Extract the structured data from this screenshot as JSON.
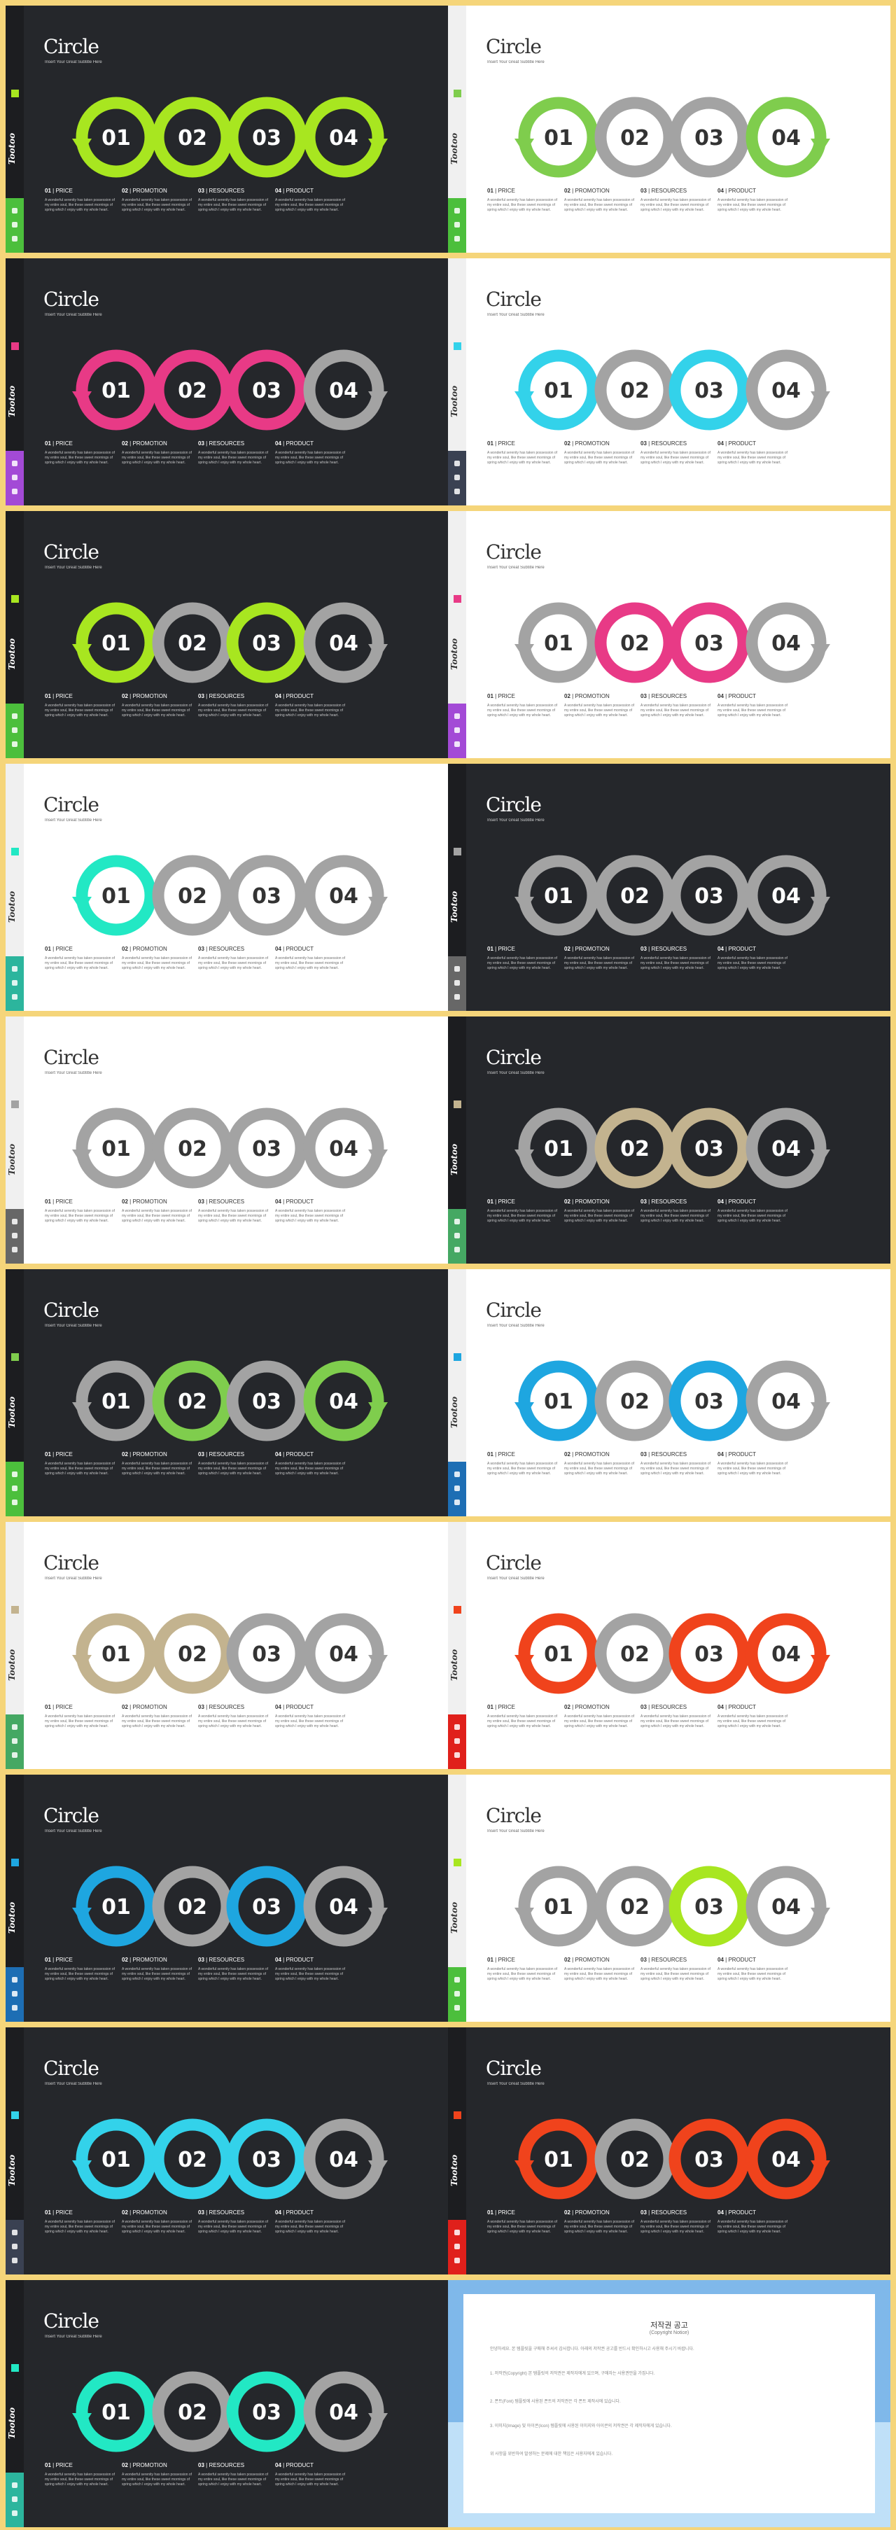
{
  "common": {
    "title": "Circle",
    "subtitle": "Insert Your Great Subtitle Here",
    "logo": "Tootoo",
    "numbers": [
      "01",
      "02",
      "03",
      "04"
    ],
    "captions": [
      {
        "num": "01",
        "label": "PRICE"
      },
      {
        "num": "02",
        "label": "PROMOTION"
      },
      {
        "num": "03",
        "label": "RESOURCES"
      },
      {
        "num": "04",
        "label": "PRODUCT"
      }
    ],
    "caption_text": "A wonderful serenity has taken possession of my entire soul, like these sweet mornings of spring which I enjoy with my whole heart."
  },
  "colors": {
    "gray_ring": "#a3a3a3",
    "dark_bg": "#25272b",
    "light_bg": "#ffffff"
  },
  "slides": [
    {
      "theme": "dark",
      "accent": "#a8e620",
      "ring_colors": [
        "accent",
        "accent",
        "accent",
        "accent"
      ],
      "sidebar": "#4cbf3c"
    },
    {
      "theme": "light",
      "accent": "#7fcd4d",
      "ring_colors": [
        "accent",
        "gray",
        "gray",
        "accent"
      ],
      "sidebar": "#4cbf3c"
    },
    {
      "theme": "dark",
      "accent": "#e83a86",
      "ring_colors": [
        "accent",
        "accent",
        "accent",
        "gray"
      ],
      "sidebar": "#a34ad6"
    },
    {
      "theme": "light",
      "accent": "#33d2ea",
      "ring_colors": [
        "accent",
        "gray",
        "accent",
        "gray"
      ],
      "sidebar": "#3a4152"
    },
    {
      "theme": "dark",
      "accent": "#a8e620",
      "ring_colors": [
        "accent",
        "gray",
        "accent",
        "gray"
      ],
      "sidebar": "#4cbf3c"
    },
    {
      "theme": "light",
      "accent": "#e83a86",
      "ring_colors": [
        "gray",
        "accent",
        "accent",
        "gray"
      ],
      "sidebar": "#a34ad6"
    },
    {
      "theme": "light",
      "accent": "#22e8c4",
      "ring_colors": [
        "accent",
        "gray",
        "gray",
        "gray"
      ],
      "sidebar": "#2cb59d"
    },
    {
      "theme": "dark",
      "accent": "#a3a3a3",
      "ring_colors": [
        "gray",
        "gray",
        "gray",
        "gray"
      ],
      "sidebar": "#676767"
    },
    {
      "theme": "light",
      "accent": "#a3a3a3",
      "ring_colors": [
        "gray",
        "gray",
        "gray",
        "gray"
      ],
      "sidebar": "#676767"
    },
    {
      "theme": "dark",
      "accent": "#c3b38f",
      "ring_colors": [
        "gray",
        "accent",
        "accent",
        "gray"
      ],
      "sidebar": "#45a863"
    },
    {
      "theme": "dark",
      "accent": "#7fcd4d",
      "ring_colors": [
        "gray",
        "accent",
        "gray",
        "accent"
      ],
      "sidebar": "#4cbf3c"
    },
    {
      "theme": "light",
      "accent": "#1ea6e0",
      "ring_colors": [
        "accent",
        "gray",
        "accent",
        "gray"
      ],
      "sidebar": "#1d6eb4"
    },
    {
      "theme": "light",
      "accent": "#c3b38f",
      "ring_colors": [
        "accent",
        "accent",
        "gray",
        "gray"
      ],
      "sidebar": "#45a863"
    },
    {
      "theme": "light",
      "accent": "#f0431c",
      "ring_colors": [
        "accent",
        "gray",
        "accent",
        "accent"
      ],
      "sidebar": "#e0201b"
    },
    {
      "theme": "dark",
      "accent": "#1ea6e0",
      "ring_colors": [
        "accent",
        "gray",
        "accent",
        "gray"
      ],
      "sidebar": "#1d6eb4"
    },
    {
      "theme": "light",
      "accent": "#a8e620",
      "ring_colors": [
        "gray",
        "gray",
        "accent",
        "gray"
      ],
      "sidebar": "#4cbf3c"
    },
    {
      "theme": "dark",
      "accent": "#33d2ea",
      "ring_colors": [
        "accent",
        "accent",
        "accent",
        "gray"
      ],
      "sidebar": "#3a4152"
    },
    {
      "theme": "dark",
      "accent": "#f0431c",
      "ring_colors": [
        "accent",
        "gray",
        "accent",
        "accent"
      ],
      "sidebar": "#e0201b"
    },
    {
      "theme": "dark",
      "accent": "#22e8c4",
      "ring_colors": [
        "accent",
        "gray",
        "accent",
        "gray"
      ],
      "sidebar": "#2cb59d"
    }
  ],
  "notice": {
    "title": "저작권 공고",
    "subtitle": "(Copyright Notice)",
    "paragraphs": [
      "안녕하세요. 본 템플릿을 구매해 주셔서 감사합니다. 아래의 저작권 공고를 반드시 확인하시고 사용해 주시기 바랍니다.",
      "1. 저작권(Copyright) 본 템플릿의 저작권은 제작자에게 있으며, 구매자는 사용권만을 가집니다.",
      "2. 폰트(Font) 템플릿에 사용된 폰트의 저작권은 각 폰트 제작사에 있습니다.",
      "3. 이미지(Image) 및 아이콘(Icon) 템플릿에 사용된 이미지와 아이콘의 저작권은 각 제작자에게 있습니다.",
      "위 사항을 위반하여 발생하는 문제에 대한 책임은 사용자에게 있습니다."
    ]
  }
}
